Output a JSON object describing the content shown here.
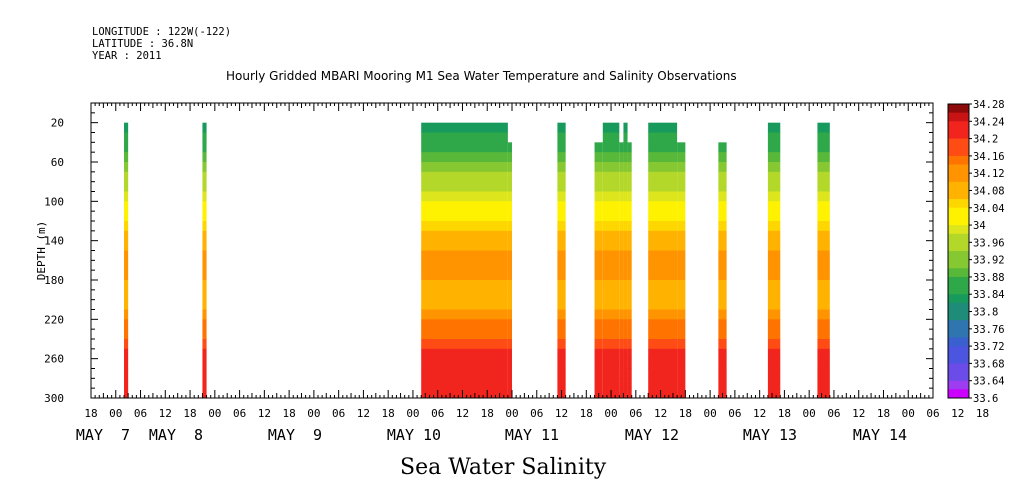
{
  "header": {
    "longitude": "LONGITUDE : 122W(-122)",
    "latitude": "LATITUDE : 36.8N",
    "year": "YEAR : 2011"
  },
  "variable_label": "Sea Water Salinity",
  "chart_data": {
    "type": "heatmap",
    "title": "Hourly Gridded MBARI Mooring M1 Sea Water Temperature and Salinity Observations",
    "xlabel": "",
    "ylabel": "DEPTH (m)",
    "y_axis": {
      "range": [
        0,
        300
      ],
      "inverted": true,
      "ticks": [
        20,
        60,
        100,
        140,
        180,
        220,
        260,
        300
      ]
    },
    "x_axis": {
      "unit": "hours since MAY 6 18:00",
      "range": [
        0,
        204
      ],
      "hour_ticks": [
        "18",
        "00",
        "06",
        "12",
        "18",
        "00",
        "06",
        "12",
        "18",
        "00",
        "06",
        "12",
        "18",
        "00",
        "06",
        "12",
        "18",
        "00",
        "06",
        "12",
        "18",
        "00",
        "06",
        "12",
        "18",
        "00",
        "06",
        "12",
        "18",
        "00",
        "06",
        "12",
        "18",
        "00",
        "06",
        "12",
        "18"
      ],
      "day_labels": [
        "MAY  7",
        "MAY  8",
        "MAY  9",
        "MAY 10",
        "MAY 11",
        "MAY 12",
        "MAY 13",
        "MAY 14"
      ]
    },
    "colorbar": {
      "min": 33.6,
      "max": 34.28,
      "step": 0.02,
      "tick_labels": [
        "34.28",
        "34.24",
        "34.2",
        "34.16",
        "34.12",
        "34.08",
        "34.04",
        "34",
        "33.96",
        "33.92",
        "33.88",
        "33.84",
        "33.8",
        "33.76",
        "33.72",
        "33.68",
        "33.64",
        "33.6"
      ]
    },
    "data_segments": [
      {
        "start": "MAY 7 02:00",
        "end": "MAY 7 03:00",
        "top_depth": 20
      },
      {
        "start": "MAY 7 21:00",
        "end": "MAY 7 22:00",
        "top_depth": 20
      },
      {
        "start": "MAY 10 02:00",
        "end": "MAY 10 23:00",
        "top_depth": 20
      },
      {
        "start": "MAY 10 23:00",
        "end": "MAY 11 00:00",
        "top_depth": 40
      },
      {
        "start": "MAY 11 11:00",
        "end": "MAY 11 13:00",
        "top_depth": 20
      },
      {
        "start": "MAY 11 20:00",
        "end": "MAY 11 22:00",
        "top_depth": 40
      },
      {
        "start": "MAY 11 22:00",
        "end": "MAY 12 02:00",
        "top_depth": 20
      },
      {
        "start": "MAY 12 02:00",
        "end": "MAY 12 03:00",
        "top_depth": 40
      },
      {
        "start": "MAY 12 03:00",
        "end": "MAY 12 04:00",
        "top_depth": 20
      },
      {
        "start": "MAY 12 04:00",
        "end": "MAY 12 05:00",
        "top_depth": 40
      },
      {
        "start": "MAY 12 09:00",
        "end": "MAY 12 16:00",
        "top_depth": 20
      },
      {
        "start": "MAY 12 16:00",
        "end": "MAY 12 18:00",
        "top_depth": 40
      },
      {
        "start": "MAY 13 02:00",
        "end": "MAY 13 04:00",
        "top_depth": 40
      },
      {
        "start": "MAY 13 14:00",
        "end": "MAY 13 17:00",
        "top_depth": 20
      },
      {
        "start": "MAY 14 02:00",
        "end": "MAY 14 05:00",
        "top_depth": 20
      }
    ],
    "salinity_profile": [
      {
        "depth": 20,
        "salinity": 33.8
      },
      {
        "depth": 40,
        "salinity": 33.86
      },
      {
        "depth": 60,
        "salinity": 33.9
      },
      {
        "depth": 80,
        "salinity": 33.96
      },
      {
        "depth": 100,
        "salinity": 34.0
      },
      {
        "depth": 120,
        "salinity": 34.04
      },
      {
        "depth": 140,
        "salinity": 34.08
      },
      {
        "depth": 160,
        "salinity": 34.12
      },
      {
        "depth": 180,
        "salinity": 34.1
      },
      {
        "depth": 200,
        "salinity": 34.08
      },
      {
        "depth": 220,
        "salinity": 34.12
      },
      {
        "depth": 240,
        "salinity": 34.18
      },
      {
        "depth": 260,
        "salinity": 34.22
      },
      {
        "depth": 280,
        "salinity": 34.22
      },
      {
        "depth": 300,
        "salinity": 34.22
      }
    ],
    "grid": false,
    "colorbar_position": "right"
  }
}
